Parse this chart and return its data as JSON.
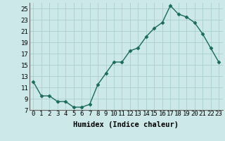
{
  "x": [
    0,
    1,
    2,
    3,
    4,
    5,
    6,
    7,
    8,
    9,
    10,
    11,
    12,
    13,
    14,
    15,
    16,
    17,
    18,
    19,
    20,
    21,
    22,
    23
  ],
  "y": [
    12.0,
    9.5,
    9.5,
    8.5,
    8.5,
    7.5,
    7.5,
    8.0,
    11.5,
    13.5,
    15.5,
    15.5,
    17.5,
    18.0,
    20.0,
    21.5,
    22.5,
    25.5,
    24.0,
    23.5,
    22.5,
    20.5,
    18.0,
    15.5
  ],
  "xlabel": "Humidex (Indice chaleur)",
  "xlim": [
    -0.5,
    23.5
  ],
  "ylim": [
    7,
    26
  ],
  "yticks": [
    7,
    9,
    11,
    13,
    15,
    17,
    19,
    21,
    23,
    25
  ],
  "xticks": [
    0,
    1,
    2,
    3,
    4,
    5,
    6,
    7,
    8,
    9,
    10,
    11,
    12,
    13,
    14,
    15,
    16,
    17,
    18,
    19,
    20,
    21,
    22,
    23
  ],
  "line_color": "#1a6b5a",
  "marker_color": "#1a6b5a",
  "bg_color": "#cce8e8",
  "grid_color": "#aacece",
  "label_fontsize": 7.5,
  "tick_fontsize": 6.5
}
